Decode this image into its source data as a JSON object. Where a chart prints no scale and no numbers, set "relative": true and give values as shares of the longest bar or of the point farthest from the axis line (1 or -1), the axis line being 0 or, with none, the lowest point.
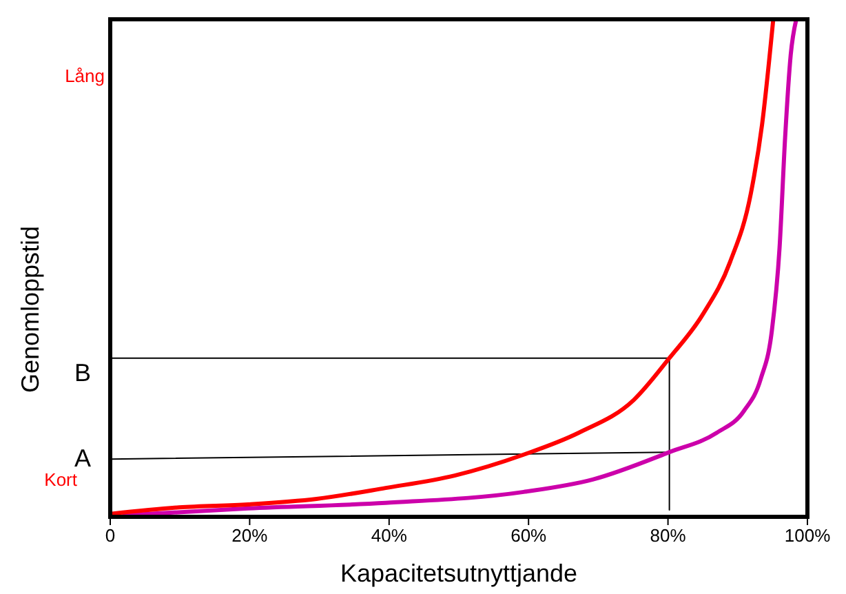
{
  "chart_data": {
    "type": "line",
    "relative": true,
    "xlabel": "Kapacitetsutnyttjande",
    "ylabel": "Genomloppstid",
    "xlim": [
      0,
      100
    ],
    "xticks": [
      0,
      {
        "value": 20,
        "label": "20%"
      },
      {
        "value": 40,
        "label": "40%"
      },
      {
        "value": 60,
        "label": "60%"
      },
      {
        "value": 80,
        "label": "80%"
      },
      {
        "value": 100,
        "label": "100%"
      }
    ],
    "series": [
      {
        "color": "#ff0000",
        "x": [
          0,
          9.9,
          19.8,
          29.6,
          39.5,
          49.4,
          59.3,
          67.2,
          75.1,
          80.2,
          85,
          88.9,
          91.9,
          93.5,
          95.1
        ],
        "values": [
          0.006,
          0.019,
          0.025,
          0.036,
          0.058,
          0.083,
          0.125,
          0.169,
          0.235,
          0.319,
          0.407,
          0.512,
          0.651,
          0.789,
          1
        ]
      },
      {
        "color": "#cc00aa",
        "x": [
          2,
          19.8,
          39.5,
          59.3,
          69.2,
          80.2,
          87,
          90.9,
          93.3,
          94.9,
          96,
          96.8,
          97.6,
          98.4
        ],
        "values": [
          0.003,
          0.017,
          0.028,
          0.05,
          0.075,
          0.13,
          0.169,
          0.213,
          0.277,
          0.374,
          0.54,
          0.762,
          0.928,
          1
        ]
      },
      {
        "color": "#000000",
        "x": [
          0,
          80.2
        ],
        "values": [
          0.319,
          0.319
        ]
      },
      {
        "color": "#000000",
        "x": [
          0,
          80.2
        ],
        "values": [
          0.116,
          0.13
        ]
      },
      {
        "color": "#000000",
        "x": [
          80.2,
          80.2
        ],
        "values": [
          0.319,
          0.014
        ]
      }
    ],
    "annotations": [
      "Lång",
      "Kort",
      "A",
      "B"
    ]
  }
}
